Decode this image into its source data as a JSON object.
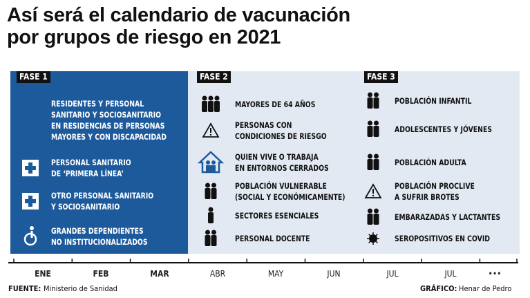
{
  "header": {
    "title": [
      "Así será el calendario de vacunación",
      "por grupos de riesgo en 2021"
    ]
  },
  "phases": [
    {
      "label": "FASE 1",
      "items": [
        {
          "lines": [
            "RESIDENTES Y PERSONAL",
            "SANITARIO Y SOCIOSANITARIO",
            "EN RESIDENCIAS DE PERSONAS",
            "MAYORES Y CON DISCAPACIDAD"
          ]
        },
        {
          "lines": [
            "PERSONAL SANITARIO",
            "DE ‘PRIMERA LÍNEA’"
          ]
        },
        {
          "lines": [
            "OTRO PERSONAL SANITARIO",
            "Y SOCIOSANITARIO"
          ]
        },
        {
          "lines": [
            "GRANDES DEPENDIENTES",
            "NO INSTITUCIONALIZADOS"
          ]
        }
      ]
    },
    {
      "label": "FASE 2",
      "items": [
        {
          "lines": [
            "MAYORES DE 64 AÑOS"
          ]
        },
        {
          "lines": [
            "PERSONAS CON",
            "CONDICIONES DE RIESGO"
          ]
        },
        {
          "lines": [
            "QUIEN VIVE O TRABAJA",
            "EN ENTORNOS CERRADOS"
          ]
        },
        {
          "lines": [
            "POBLACIÓN VULNERABLE",
            "(SOCIAL Y ECONÓMICAMENTE)"
          ]
        },
        {
          "lines": [
            "SECTORES ESENCIALES"
          ]
        },
        {
          "lines": [
            "PERSONAL DOCENTE"
          ]
        }
      ]
    },
    {
      "label": "FASE 3",
      "items": [
        {
          "lines": [
            "POBLACIÓN INFANTIL"
          ]
        },
        {
          "lines": [
            "ADOLESCENTES Y JÓVENES"
          ]
        },
        {
          "lines": [
            "POBLACIÓN ADULTA"
          ]
        },
        {
          "lines": [
            "POBLACIÓN PROCLIVE",
            "A SUFRIR BROTES"
          ]
        },
        {
          "lines": [
            "EMBARAZADAS Y LACTANTES"
          ]
        },
        {
          "lines": [
            "SEROPOSITIVOS EN COVID"
          ]
        }
      ]
    }
  ],
  "timeline": {
    "months": [
      "ENE",
      "FEB",
      "MAR",
      "ABR",
      "MAY",
      "JUN",
      "JUL",
      "JUL",
      "•••"
    ]
  },
  "footer": {
    "source_label": "FUENTE:",
    "source": "Ministerio de Sanidad",
    "credit_label": "GRÁFICO:",
    "credit": "Henar de Pedro"
  }
}
